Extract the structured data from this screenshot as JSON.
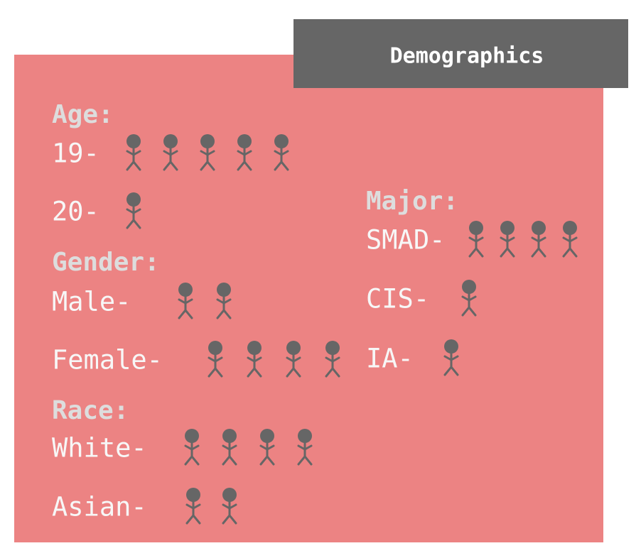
{
  "title": "Demographics",
  "sections": [
    {
      "heading": "Age:",
      "rows": [
        {
          "label": "19-",
          "count": 5
        },
        {
          "label": "20-",
          "count": 1
        }
      ]
    },
    {
      "heading": "Gender:",
      "rows": [
        {
          "label": "Male-",
          "count": 2
        },
        {
          "label": "Female-",
          "count": 4
        }
      ]
    },
    {
      "heading": "Race:",
      "rows": [
        {
          "label": "White-",
          "count": 4
        },
        {
          "label": "Asian-",
          "count": 2
        }
      ]
    },
    {
      "heading": "Major:",
      "rows": [
        {
          "label": "SMAD-",
          "count": 4
        },
        {
          "label": "CIS-",
          "count": 1
        },
        {
          "label": "IA-",
          "count": 1
        }
      ]
    }
  ]
}
